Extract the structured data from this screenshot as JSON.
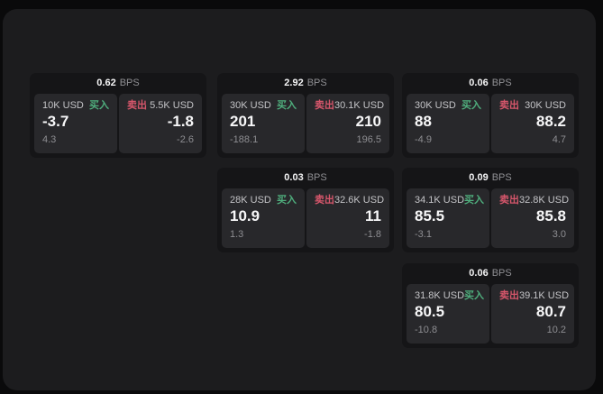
{
  "colors": {
    "buy_accent": "#4fae7d",
    "sell_accent": "#d6566b"
  },
  "cards": [
    {
      "bps_value": "0.62",
      "bps_unit": "BPS",
      "grid": {
        "row": 1,
        "col": 1
      },
      "buy": {
        "amount": "10K USD",
        "side_label": "买入",
        "value": "-3.7",
        "sub_value": "4.3"
      },
      "sell": {
        "side_label": "卖出",
        "amount": "5.5K USD",
        "value": "-1.8",
        "sub_value": "-2.6"
      }
    },
    {
      "bps_value": "2.92",
      "bps_unit": "BPS",
      "grid": {
        "row": 1,
        "col": 2
      },
      "buy": {
        "amount": "30K USD",
        "side_label": "买入",
        "value": "201",
        "sub_value": "-188.1"
      },
      "sell": {
        "side_label": "卖出",
        "amount": "30.1K USD",
        "value": "210",
        "sub_value": "196.5"
      }
    },
    {
      "bps_value": "0.06",
      "bps_unit": "BPS",
      "grid": {
        "row": 1,
        "col": 3
      },
      "buy": {
        "amount": "30K USD",
        "side_label": "买入",
        "value": "88",
        "sub_value": "-4.9"
      },
      "sell": {
        "side_label": "卖出",
        "amount": "30K USD",
        "value": "88.2",
        "sub_value": "4.7"
      }
    },
    {
      "bps_value": "0.03",
      "bps_unit": "BPS",
      "grid": {
        "row": 2,
        "col": 2
      },
      "buy": {
        "amount": "28K USD",
        "side_label": "买入",
        "value": "10.9",
        "sub_value": "1.3"
      },
      "sell": {
        "side_label": "卖出",
        "amount": "32.6K USD",
        "value": "11",
        "sub_value": "-1.8"
      }
    },
    {
      "bps_value": "0.09",
      "bps_unit": "BPS",
      "grid": {
        "row": 2,
        "col": 3
      },
      "buy": {
        "amount": "34.1K USD",
        "side_label": "买入",
        "value": "85.5",
        "sub_value": "-3.1"
      },
      "sell": {
        "side_label": "卖出",
        "amount": "32.8K USD",
        "value": "85.8",
        "sub_value": "3.0"
      }
    },
    {
      "bps_value": "0.06",
      "bps_unit": "BPS",
      "grid": {
        "row": 3,
        "col": 3
      },
      "buy": {
        "amount": "31.8K USD",
        "side_label": "买入",
        "value": "80.5",
        "sub_value": "-10.8"
      },
      "sell": {
        "side_label": "卖出",
        "amount": "39.1K USD",
        "value": "80.7",
        "sub_value": "10.2"
      }
    }
  ]
}
